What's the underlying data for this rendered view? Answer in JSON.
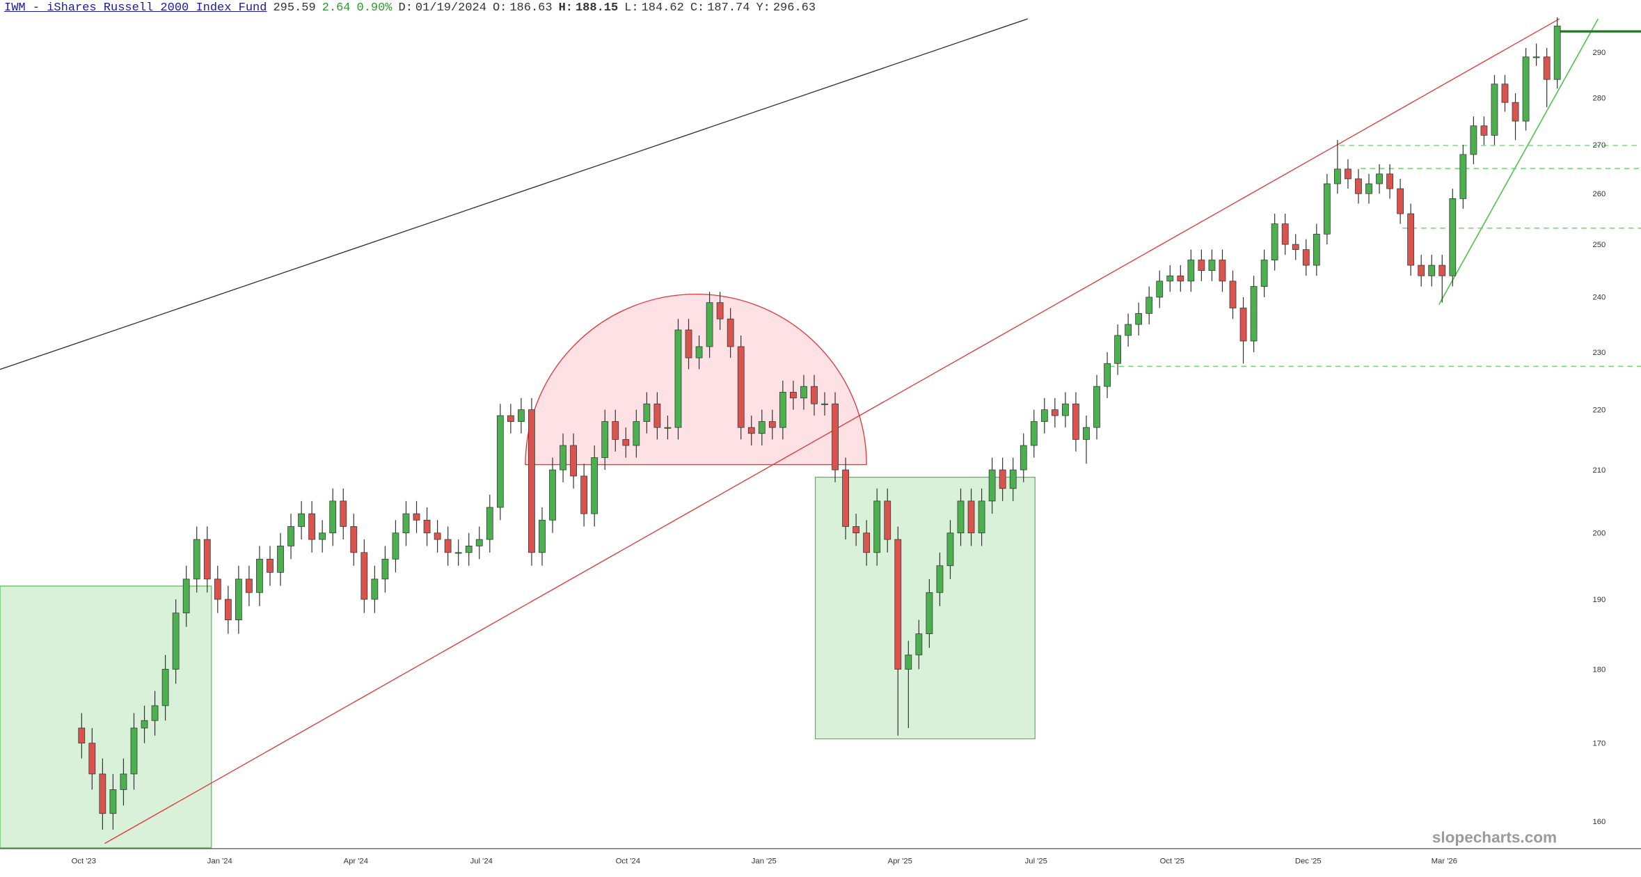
{
  "header": {
    "symbol": "IWM - iShares Russell 2000 Index Fund",
    "last": "295.59",
    "change": "2.64",
    "change_pct": "0.90%",
    "fields": [
      {
        "label": "D:",
        "value": "01/19/2024"
      },
      {
        "label": "O:",
        "value": "186.63"
      },
      {
        "label": "H:",
        "value": "188.15"
      },
      {
        "label": "L:",
        "value": "184.62"
      },
      {
        "label": "C:",
        "value": "187.74"
      },
      {
        "label": "Y:",
        "value": "296.63"
      }
    ]
  },
  "chart_data": {
    "type": "candlestick",
    "watermark": "slopecharts.com",
    "log_scale": true,
    "grid": false,
    "up_color": "#4caf50",
    "down_color": "#d9534f",
    "ylim": [
      156.8,
      302.0
    ],
    "yticks": [
      160,
      170,
      180,
      190,
      200,
      210,
      220,
      230,
      240,
      250,
      260,
      270,
      280,
      290
    ],
    "categories": [
      "Oct '23",
      null,
      null,
      null,
      null,
      null,
      null,
      null,
      null,
      null,
      null,
      null,
      null,
      "Jan '24",
      null,
      null,
      null,
      null,
      null,
      null,
      null,
      null,
      null,
      null,
      null,
      null,
      "Apr '24",
      null,
      null,
      null,
      null,
      null,
      null,
      null,
      null,
      null,
      null,
      null,
      "Jul '24",
      null,
      null,
      null,
      null,
      null,
      null,
      null,
      null,
      null,
      null,
      null,
      null,
      null,
      "Oct '24",
      null,
      null,
      null,
      null,
      null,
      null,
      null,
      null,
      null,
      null,
      null,
      null,
      "Jan '25",
      null,
      null,
      null,
      null,
      null,
      null,
      null,
      null,
      null,
      null,
      null,
      null,
      "Apr '25",
      null,
      null,
      null,
      null,
      null,
      null,
      null,
      null,
      null,
      null,
      null,
      null,
      "Jul '25",
      null,
      null,
      null,
      null,
      null,
      null,
      null,
      null,
      null,
      null,
      null,
      null,
      "Oct '25",
      null,
      null,
      null,
      null,
      null,
      null,
      null,
      null,
      null,
      null,
      null,
      null,
      "Dec '25",
      null,
      null,
      null,
      null,
      null,
      null,
      null,
      null,
      null,
      null,
      null,
      null,
      "Mar '26",
      null,
      null,
      null,
      null,
      null,
      null,
      null,
      null,
      null,
      null,
      null
    ],
    "open": [
      172,
      170,
      166,
      161,
      164,
      166,
      172,
      173,
      175,
      180,
      188,
      193,
      199,
      193,
      190,
      187,
      193,
      191,
      196,
      194,
      198,
      201,
      203,
      199,
      200,
      205,
      201,
      197,
      190,
      193,
      196,
      200,
      203,
      202,
      200,
      199,
      197,
      197,
      198,
      199,
      204,
      219,
      218,
      220,
      197,
      202,
      210,
      214,
      209,
      203,
      212,
      218,
      215,
      214,
      218,
      221,
      217,
      217,
      234,
      229,
      231,
      239,
      236,
      231,
      217,
      216,
      218,
      217,
      223,
      222,
      224,
      221,
      221,
      210,
      201,
      200,
      197,
      205,
      199,
      180,
      182,
      185,
      191,
      195,
      200,
      205,
      200,
      205,
      210,
      207,
      210,
      214,
      218,
      220,
      219,
      221,
      215,
      217,
      224,
      228,
      233,
      235,
      237,
      240,
      243,
      244,
      243,
      247,
      245,
      247,
      243,
      238,
      232,
      242,
      247,
      254,
      250,
      249,
      246,
      252,
      262,
      265,
      263,
      260,
      262,
      264,
      261,
      256,
      246,
      244,
      246,
      244,
      259,
      268,
      274,
      272,
      283,
      279,
      275,
      289,
      289,
      284
    ],
    "high": [
      174,
      172,
      168,
      166,
      168,
      174,
      175,
      177,
      182,
      190,
      195,
      201,
      201,
      195,
      192,
      195,
      195,
      198,
      198,
      200,
      203,
      205,
      205,
      202,
      207,
      207,
      203,
      199,
      195,
      198,
      202,
      205,
      205,
      204,
      202,
      201,
      199,
      200,
      201,
      206,
      221,
      221,
      222,
      222,
      204,
      212,
      216,
      216,
      211,
      214,
      220,
      220,
      217,
      220,
      223,
      223,
      219,
      236,
      236,
      233,
      241,
      241,
      238,
      233,
      219,
      220,
      220,
      225,
      225,
      226,
      226,
      223,
      223,
      212,
      203,
      202,
      207,
      207,
      201,
      184,
      187,
      193,
      197,
      202,
      207,
      207,
      207,
      212,
      212,
      212,
      216,
      220,
      222,
      222,
      223,
      223,
      219,
      226,
      230,
      235,
      237,
      239,
      242,
      245,
      246,
      246,
      249,
      249,
      249,
      249,
      245,
      240,
      244,
      249,
      256,
      256,
      252,
      251,
      254,
      264,
      271,
      267,
      265,
      264,
      266,
      266,
      263,
      258,
      248,
      248,
      248,
      261,
      270,
      276,
      276,
      285,
      285,
      281,
      291,
      292,
      291,
      298
    ],
    "low": [
      168,
      164,
      159,
      159,
      162,
      164,
      170,
      171,
      173,
      178,
      186,
      191,
      191,
      188,
      185,
      185,
      189,
      189,
      192,
      192,
      196,
      199,
      197,
      197,
      198,
      199,
      195,
      188,
      188,
      191,
      194,
      198,
      200,
      198,
      197,
      195,
      195,
      195,
      196,
      197,
      202,
      216,
      216,
      195,
      195,
      200,
      208,
      207,
      201,
      201,
      210,
      213,
      212,
      212,
      216,
      215,
      215,
      215,
      227,
      227,
      229,
      234,
      229,
      215,
      214,
      214,
      215,
      215,
      220,
      220,
      219,
      219,
      208,
      199,
      198,
      195,
      195,
      197,
      171,
      172,
      180,
      183,
      189,
      193,
      198,
      198,
      198,
      203,
      205,
      205,
      208,
      212,
      216,
      217,
      217,
      213,
      211,
      215,
      222,
      226,
      231,
      233,
      235,
      238,
      241,
      241,
      241,
      243,
      243,
      241,
      236,
      228,
      230,
      240,
      245,
      248,
      247,
      244,
      244,
      250,
      260,
      261,
      258,
      258,
      260,
      259,
      254,
      244,
      242,
      242,
      239,
      242,
      257,
      266,
      270,
      270,
      277,
      271,
      273,
      287,
      278,
      282
    ],
    "close": [
      170,
      166,
      161,
      164,
      166,
      172,
      173,
      175,
      180,
      188,
      193,
      199,
      193,
      190,
      187,
      193,
      191,
      196,
      194,
      198,
      201,
      203,
      199,
      200,
      205,
      201,
      197,
      190,
      193,
      196,
      200,
      203,
      202,
      200,
      199,
      197,
      197,
      198,
      199,
      204,
      219,
      218,
      220,
      197,
      202,
      210,
      214,
      209,
      203,
      212,
      218,
      215,
      214,
      218,
      221,
      217,
      217,
      234,
      229,
      231,
      239,
      236,
      231,
      217,
      216,
      218,
      217,
      223,
      222,
      224,
      221,
      221,
      210,
      201,
      200,
      197,
      205,
      199,
      180,
      182,
      185,
      191,
      195,
      200,
      205,
      200,
      205,
      210,
      207,
      210,
      214,
      218,
      220,
      219,
      221,
      215,
      217,
      224,
      228,
      233,
      235,
      237,
      240,
      243,
      244,
      243,
      247,
      245,
      247,
      243,
      238,
      232,
      242,
      247,
      254,
      250,
      249,
      246,
      252,
      262,
      265,
      263,
      260,
      262,
      264,
      261,
      256,
      246,
      244,
      246,
      244,
      259,
      268,
      274,
      272,
      283,
      279,
      275,
      289,
      289,
      284,
      296
    ]
  }
}
